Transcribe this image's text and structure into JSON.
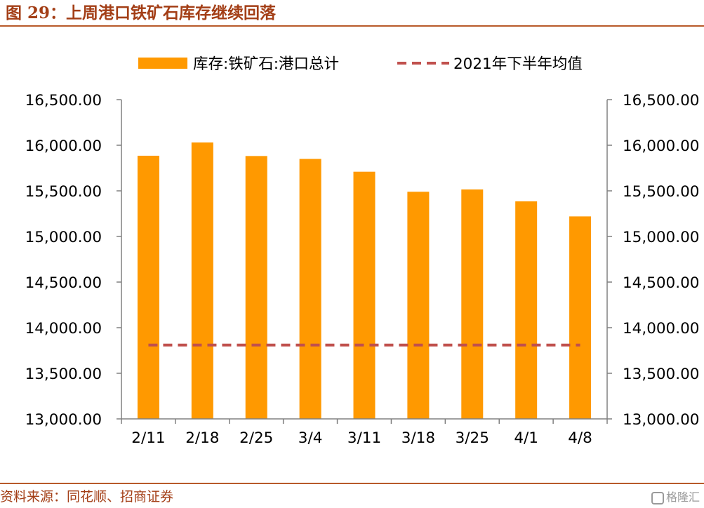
{
  "header": {
    "title": "图 29：上周港口铁矿石库存继续回落"
  },
  "footer": {
    "source": "资料来源：同花顺、招商证券",
    "watermark": "格隆汇"
  },
  "colors": {
    "bar": "#ff9900",
    "reference_line": "#c0504d",
    "title": "#a33e16",
    "rule": "#b85a2a"
  },
  "chart_data": {
    "type": "bar",
    "categories": [
      "2/11",
      "2/18",
      "2/25",
      "3/4",
      "3/11",
      "3/18",
      "3/25",
      "4/1",
      "4/8"
    ],
    "series": [
      {
        "name": "库存:铁矿石:港口总计",
        "type": "bar",
        "values": [
          15885,
          16030,
          15882,
          15850,
          15710,
          15490,
          15515,
          15385,
          15220
        ]
      },
      {
        "name": "2021年下半年均值",
        "type": "line",
        "style": "dashed",
        "values": [
          13810,
          13810,
          13810,
          13810,
          13810,
          13810,
          13810,
          13810,
          13810
        ]
      }
    ],
    "ylim": [
      13000,
      16500
    ],
    "yticks": [
      "13,000.00",
      "13,500.00",
      "14,000.00",
      "14,500.00",
      "15,000.00",
      "15,500.00",
      "16,000.00",
      "16,500.00"
    ],
    "ytick_values": [
      13000,
      13500,
      14000,
      14500,
      15000,
      15500,
      16000,
      16500
    ],
    "y2ticks": [
      "13,000.00",
      "13,500.00",
      "14,000.00",
      "14,500.00",
      "15,000.00",
      "15,500.00",
      "16,000.00",
      "16,500.00"
    ],
    "grid": false,
    "legend_position": "top"
  }
}
